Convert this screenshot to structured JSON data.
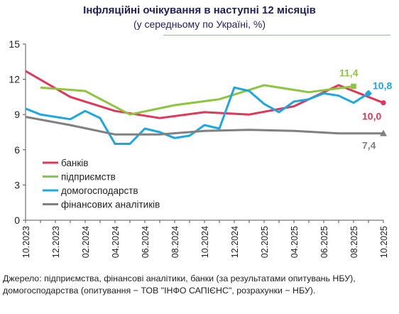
{
  "title": "Інфляційні очікування в наступні 12 місяців",
  "subtitle": "(у середньому по Україні, %)",
  "source": "Джерело: підприємства, фінансові аналітики, банки (за результатами опитувань НБУ), домогосподарства (опитування − ТОВ \"ІНФО САПІЄНС\", розрахунки − НБУ).",
  "chart_data": {
    "type": "line",
    "x": [
      "10.2023",
      "11.2023",
      "12.2023",
      "01.2024",
      "02.2024",
      "03.2024",
      "04.2024",
      "05.2024",
      "06.2024",
      "07.2024",
      "08.2024",
      "09.2024",
      "10.2024",
      "11.2024",
      "12.2024",
      "01.2025",
      "02.2025",
      "03.2025",
      "04.2025",
      "05.2025",
      "06.2025",
      "07.2025",
      "08.2025",
      "09.2025",
      "10.2025"
    ],
    "xticks": [
      "10.2023",
      "12.2023",
      "02.2024",
      "04.2024",
      "06.2024",
      "08.2024",
      "10.2024",
      "12.2024",
      "02.2025",
      "04.2025",
      "06.2025",
      "08.2025",
      "10.2025"
    ],
    "ylim": [
      0,
      15
    ],
    "yticks": [
      0,
      3,
      6,
      9,
      12,
      15
    ],
    "grid": false,
    "legend_position": "bottom-left",
    "series": [
      {
        "name": "банків",
        "color": "#e0365a",
        "values": [
          12.7,
          null,
          null,
          10.5,
          null,
          null,
          9.3,
          null,
          null,
          8.7,
          null,
          null,
          9.2,
          null,
          null,
          9.0,
          null,
          null,
          9.7,
          null,
          null,
          11.5,
          null,
          null,
          10.0
        ],
        "end_label": "10,0",
        "end_marker": "circle"
      },
      {
        "name": "підприємств",
        "color": "#8cc63f",
        "values": [
          null,
          11.3,
          null,
          null,
          11.0,
          null,
          null,
          9.0,
          null,
          null,
          9.8,
          null,
          null,
          10.3,
          null,
          null,
          11.5,
          null,
          null,
          10.9,
          null,
          null,
          11.4,
          null,
          null
        ],
        "end_label": "11,4",
        "end_marker": "square"
      },
      {
        "name": "домогосподарств",
        "color": "#1ba8e0",
        "values": [
          9.5,
          9.0,
          8.8,
          8.6,
          9.3,
          8.7,
          6.5,
          6.5,
          7.8,
          7.5,
          7.0,
          7.2,
          8.1,
          7.8,
          11.3,
          11.0,
          9.9,
          9.2,
          10.1,
          10.3,
          10.8,
          10.6,
          10.0,
          10.8,
          null
        ],
        "end_label": "10,8",
        "end_marker": "diamond"
      },
      {
        "name": "фінансових аналітиків",
        "color": "#808080",
        "values": [
          8.8,
          null,
          null,
          8.1,
          null,
          null,
          7.3,
          null,
          null,
          7.3,
          null,
          null,
          7.6,
          null,
          null,
          7.7,
          null,
          null,
          7.6,
          null,
          null,
          7.4,
          null,
          null,
          7.4
        ],
        "end_label": "7,4",
        "end_marker": "triangle"
      }
    ]
  }
}
